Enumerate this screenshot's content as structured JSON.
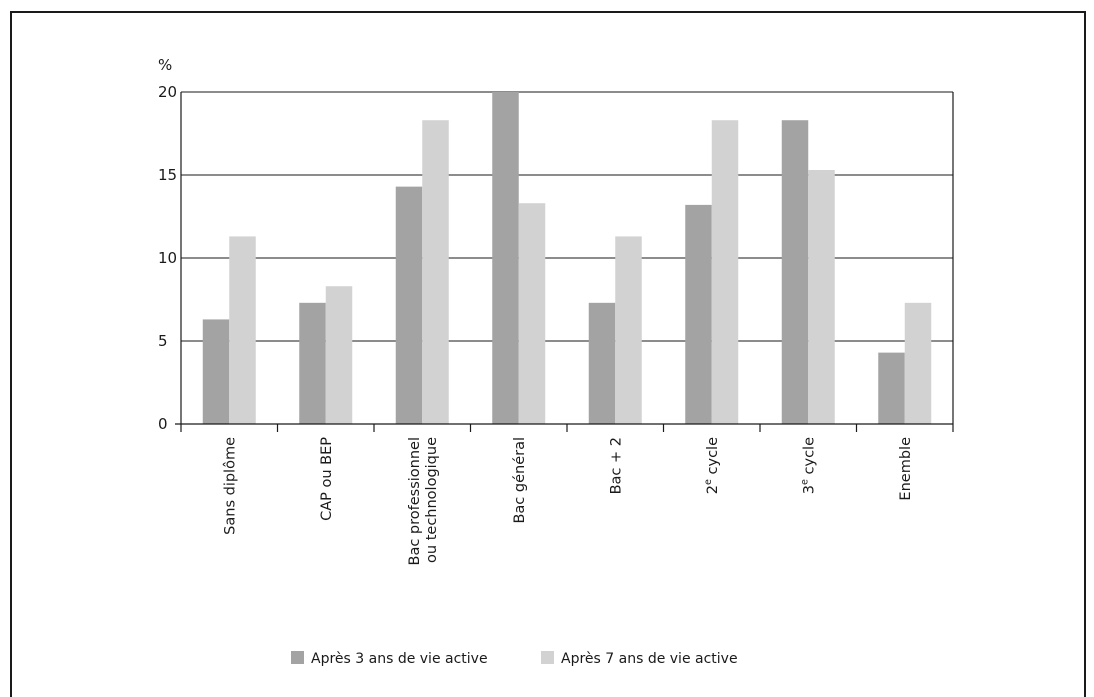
{
  "chart_data": {
    "type": "bar",
    "ylabel": "%",
    "ylim": [
      0,
      20
    ],
    "yticks": [
      "0",
      "5",
      "10",
      "15",
      "20"
    ],
    "grid": true,
    "legend_position": "bottom",
    "categories": [
      [
        "Sans diplôme"
      ],
      [
        "CAP ou BEP"
      ],
      [
        "Bac professionnel",
        "ou technologique"
      ],
      [
        "Bac général"
      ],
      [
        "Bac + 2"
      ],
      [
        "2e cycle"
      ],
      [
        "3e cycle"
      ],
      [
        "Enemble"
      ]
    ],
    "series": [
      {
        "name": "Après 3 ans de vie active",
        "color": "#a3a3a3",
        "values": [
          6.3,
          7.3,
          14.3,
          20,
          7.3,
          13.2,
          18.3,
          4.3
        ]
      },
      {
        "name": "Après 7 ans de vie active",
        "color": "#d2d2d2",
        "values": [
          11.3,
          8.3,
          18.3,
          13.3,
          11.3,
          18.3,
          15.3,
          7.3
        ]
      }
    ]
  }
}
